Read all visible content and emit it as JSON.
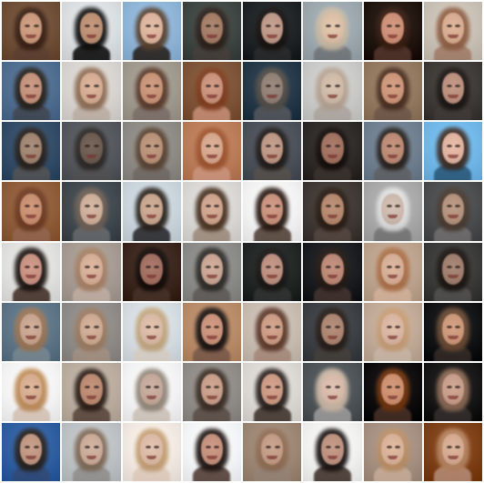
{
  "grid": {
    "rows": 8,
    "cols": 8
  },
  "tiles": [
    {
      "bg": "#6f4e37",
      "hair": "#3b2418",
      "skin": "#c6967a",
      "shirt": "#5a3c2d"
    },
    {
      "bg": "#d9dde0",
      "hair": "#151515",
      "skin": "#b98d72",
      "shirt": "#1d1d1d"
    },
    {
      "bg": "#8db3d6",
      "hair": "#5b4534",
      "skin": "#d8b19a",
      "shirt": "#2d2b2a"
    },
    {
      "bg": "#3f4542",
      "hair": "#2f241f",
      "skin": "#a07a64",
      "shirt": "#3f3a37"
    },
    {
      "bg": "#1f2326",
      "hair": "#1b1715",
      "skin": "#ba9585",
      "shirt": "#232526"
    },
    {
      "bg": "#9ba6ad",
      "hair": "#c7b8a2",
      "skin": "#d8bca4",
      "shirt": "#6f7478"
    },
    {
      "bg": "#21150f",
      "hair": "#3b2116",
      "skin": "#c98c74",
      "shirt": "#482d25"
    },
    {
      "bg": "#c8bfb4",
      "hair": "#8d5f45",
      "skin": "#d3a98f",
      "shirt": "#9f7d6b"
    },
    {
      "bg": "#4f6d8f",
      "hair": "#2b2520",
      "skin": "#bf8f79",
      "shirt": "#3d4754"
    },
    {
      "bg": "#d6d2cd",
      "hair": "#8d6d55",
      "skin": "#d1aa91",
      "shirt": "#b8aca2"
    },
    {
      "bg": "#9f988d",
      "hair": "#5c3d2e",
      "skin": "#c59176",
      "shirt": "#7a6d67"
    },
    {
      "bg": "#7d5437",
      "hair": "#7f3f22",
      "skin": "#c58f79",
      "shirt": "#b88169"
    },
    {
      "bg": "#243848",
      "hair": "#55504b",
      "skin": "#8f7e73",
      "shirt": "#4a4f55"
    },
    {
      "bg": "#c8c8c6",
      "hair": "#b3a191",
      "skin": "#ccb7a5",
      "shirt": "#a9a29d"
    },
    {
      "bg": "#92785f",
      "hair": "#4b3123",
      "skin": "#c99378",
      "shirt": "#6c5547"
    },
    {
      "bg": "#3e3a37",
      "hair": "#1f1a18",
      "skin": "#b88d7c",
      "shirt": "#3a3533"
    },
    {
      "bg": "#324c67",
      "hair": "#2b2420",
      "skin": "#9c826f",
      "shirt": "#4a4e52"
    },
    {
      "bg": "#54585c",
      "hair": "#2f2c2a",
      "skin": "#6b5a4f",
      "shirt": "#4c4c4e"
    },
    {
      "bg": "#8d8a84",
      "hair": "#5a4536",
      "skin": "#b68f77",
      "shirt": "#6e6661"
    },
    {
      "bg": "#b97b58",
      "hair": "#9d5532",
      "skin": "#d1a48b",
      "shirt": "#c28b73"
    },
    {
      "bg": "#4b5059",
      "hair": "#231f1d",
      "skin": "#ba9482",
      "shirt": "#4f4b48"
    },
    {
      "bg": "#2e2a28",
      "hair": "#17120f",
      "skin": "#9e6f5e",
      "shirt": "#342c28"
    },
    {
      "bg": "#6f7f8f",
      "hair": "#2b2421",
      "skin": "#b88873",
      "shirt": "#5b5f63"
    },
    {
      "bg": "#70b7e8",
      "hair": "#3f2f27",
      "skin": "#dcb09d",
      "shirt": "#2d5e81"
    },
    {
      "bg": "#8f5c3a",
      "hair": "#6d3d25",
      "skin": "#c58d70",
      "shirt": "#8d5f48"
    },
    {
      "bg": "#40484f",
      "hair": "#6f6156",
      "skin": "#c9ab98",
      "shirt": "#5d6064"
    },
    {
      "bg": "#c8d3da",
      "hair": "#2e2620",
      "skin": "#c4a28c",
      "shirt": "#34363a"
    },
    {
      "bg": "#d8d6d3",
      "hair": "#4a3424",
      "skin": "#caa18b",
      "shirt": "#9d8d80"
    },
    {
      "bg": "#f1f1f1",
      "hair": "#2c1d17",
      "skin": "#c48f7b",
      "shirt": "#5c4d45"
    },
    {
      "bg": "#3f3834",
      "hair": "#2d2018",
      "skin": "#b1866c",
      "shirt": "#4d403a"
    },
    {
      "bg": "#a7a7a7",
      "hair": "#dcdcdc",
      "skin": "#c9b6aa",
      "shirt": "#737373"
    },
    {
      "bg": "#4a4c4e",
      "hair": "#4b3d34",
      "skin": "#b1907b",
      "shirt": "#676565"
    },
    {
      "bg": "#dfdfdd",
      "hair": "#201816",
      "skin": "#c58f7f",
      "shirt": "#4e3d36"
    },
    {
      "bg": "#a49a91",
      "hair": "#a37f64",
      "skin": "#d2ab94",
      "shirt": "#b6a59a"
    },
    {
      "bg": "#3b261e",
      "hair": "#160f0c",
      "skin": "#9f6d5f",
      "shirt": "#402b22"
    },
    {
      "bg": "#8a8a88",
      "hair": "#302d2a",
      "skin": "#c5a291",
      "shirt": "#5d5a57"
    },
    {
      "bg": "#222726",
      "hair": "#1d1b1a",
      "skin": "#b98d7e",
      "shirt": "#2a2d2c"
    },
    {
      "bg": "#1b1c1f",
      "hair": "#281d18",
      "skin": "#b98674",
      "shirt": "#3a2d29"
    },
    {
      "bg": "#bba28d",
      "hair": "#a86f49",
      "skin": "#d2ab94",
      "shirt": "#c9a993"
    },
    {
      "bg": "#3a3a39",
      "hair": "#1f1916",
      "skin": "#9c7c6b",
      "shirt": "#4a4948"
    },
    {
      "bg": "#5c7486",
      "hair": "#9a7556",
      "skin": "#c5a28e",
      "shirt": "#6f7f89"
    },
    {
      "bg": "#8d8a87",
      "hair": "#9a7b63",
      "skin": "#c9a790",
      "shirt": "#9a8a7e"
    },
    {
      "bg": "#d4dbe0",
      "hair": "#bfa47d",
      "skin": "#d6b7a3",
      "shirt": "#cfc8c0"
    },
    {
      "bg": "#b78a68",
      "hair": "#1b1615",
      "skin": "#c68f78",
      "shirt": "#7b5949"
    },
    {
      "bg": "#c7bbb0",
      "hair": "#5d3b2c",
      "skin": "#c89a84",
      "shirt": "#a38879"
    },
    {
      "bg": "#3c3f43",
      "hair": "#2a211c",
      "skin": "#a98370",
      "shirt": "#3e3a37"
    },
    {
      "bg": "#bfa996",
      "hair": "#c39b74",
      "skin": "#d5b29f",
      "shirt": "#c1ad9d"
    },
    {
      "bg": "#121315",
      "hair": "#6c4d37",
      "skin": "#c99578",
      "shirt": "#2a2320"
    },
    {
      "bg": "#f3f3f3",
      "hair": "#bb8a58",
      "skin": "#d4aa8e",
      "shirt": "#d1c1b4"
    },
    {
      "bg": "#b9ac9f",
      "hair": "#2f221b",
      "skin": "#b78770",
      "shirt": "#5e4c42"
    },
    {
      "bg": "#f2f2f2",
      "hair": "#918679",
      "skin": "#c1a698",
      "shirt": "#c9c0b7"
    },
    {
      "bg": "#8f8b87",
      "hair": "#3d3028",
      "skin": "#c39b87",
      "shirt": "#5b4f49"
    },
    {
      "bg": "#dad6d1",
      "hair": "#2b2320",
      "skin": "#c79782",
      "shirt": "#4b3f39"
    },
    {
      "bg": "#4e5357",
      "hair": "#cab7a5",
      "skin": "#d4b7a7",
      "shirt": "#8d8d8d"
    },
    {
      "bg": "#0e0c0c",
      "hair": "#733813",
      "skin": "#c98d6e",
      "shirt": "#3c271f"
    },
    {
      "bg": "#171616",
      "hair": "#8b6a56",
      "skin": "#c49b88",
      "shirt": "#2b2625"
    },
    {
      "bg": "#2f5ea0",
      "hair": "#2b2420",
      "skin": "#bc9480",
      "shirt": "#2b4775"
    },
    {
      "bg": "#bcc0c2",
      "hair": "#7f6a58",
      "skin": "#c7a897",
      "shirt": "#8f8e8d"
    },
    {
      "bg": "#f0e8e0",
      "hair": "#c19c73",
      "skin": "#d7b8a4",
      "shirt": "#d8c6b8"
    },
    {
      "bg": "#f3f4f5",
      "hair": "#231917",
      "skin": "#c08e7a",
      "shirt": "#5c4a43"
    },
    {
      "bg": "#9b8573",
      "hair": "#8f6d55",
      "skin": "#bf9983",
      "shirt": "#8f7d70"
    },
    {
      "bg": "#f0f0ef",
      "hair": "#1d1716",
      "skin": "#ba8f7e",
      "shirt": "#4d403a"
    },
    {
      "bg": "#a48f80",
      "hair": "#b78e66",
      "skin": "#d5ae96",
      "shirt": "#bda38f"
    },
    {
      "bg": "#7d3f16",
      "hair": "#b48462",
      "skin": "#d1a88f",
      "shirt": "#a87d65"
    }
  ]
}
